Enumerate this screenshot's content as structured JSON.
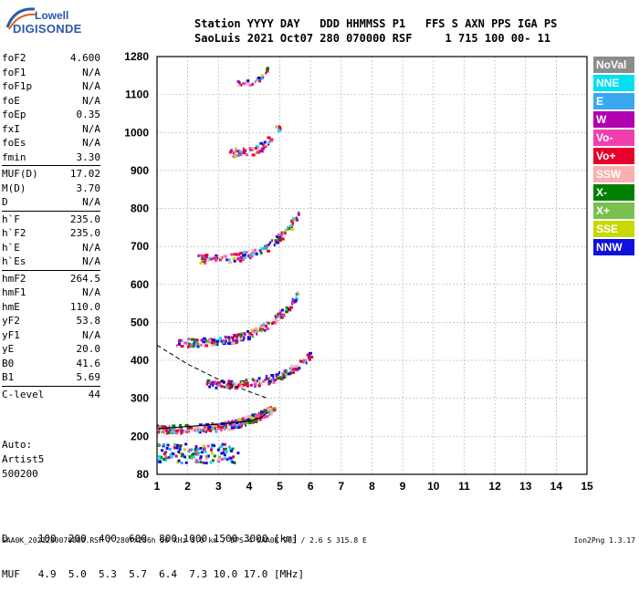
{
  "logo": {
    "line1": "Lowell",
    "line2": "DIGISONDE"
  },
  "header": {
    "line1": "Station YYYY DAY   DDD HHMMSS P1   FFS S AXN PPS IGA PS",
    "line2": "SaoLuis 2021 Oct07 280 070000 RSF     1 715 100 00- 11"
  },
  "params": [
    {
      "group": [
        {
          "k": "foF2",
          "v": "4.600"
        },
        {
          "k": "foF1",
          "v": "N/A"
        },
        {
          "k": "foF1p",
          "v": "N/A"
        },
        {
          "k": "foE",
          "v": "N/A"
        },
        {
          "k": "foEp",
          "v": "0.35"
        },
        {
          "k": "fxI",
          "v": "N/A"
        },
        {
          "k": "foEs",
          "v": "N/A"
        },
        {
          "k": "fmin",
          "v": "3.30"
        }
      ]
    },
    {
      "group": [
        {
          "k": "MUF(D)",
          "v": "17.02"
        },
        {
          "k": "M(D)",
          "v": "3.70"
        },
        {
          "k": "D",
          "v": "N/A"
        }
      ]
    },
    {
      "group": [
        {
          "k": "h`F",
          "v": "235.0"
        },
        {
          "k": "h`F2",
          "v": "235.0"
        },
        {
          "k": "h`E",
          "v": "N/A"
        },
        {
          "k": "h`Es",
          "v": "N/A"
        }
      ]
    },
    {
      "group": [
        {
          "k": "hmF2",
          "v": "264.5"
        },
        {
          "k": "hmF1",
          "v": "N/A"
        },
        {
          "k": "hmE",
          "v": "110.0"
        },
        {
          "k": "yF2",
          "v": "53.8"
        },
        {
          "k": "yF1",
          "v": "N/A"
        },
        {
          "k": "yE",
          "v": "20.0"
        },
        {
          "k": "B0",
          "v": "41.6"
        },
        {
          "k": "B1",
          "v": "5.69"
        }
      ]
    },
    {
      "group": [
        {
          "k": "C-level",
          "v": "44"
        }
      ]
    }
  ],
  "auto": {
    "line1": "Auto:",
    "line2": "Artist5",
    "line3": "500200"
  },
  "muf_table": {
    "d_row": "D     100  200  400  600  800 1000 1500 3000 [km]",
    "muf_row": "MUF   4.9  5.0  5.3  5.7  6.4  7.3 10.0 17.0 [MHz]"
  },
  "footer": {
    "left": "SAA0K_2021280070000.RSF / 280fx256h 50 kHz 5.0 km / DPS-4 SAA0K 903 / 2.6 S 315.8 E",
    "right": "Ion2Png 1.3.17"
  },
  "legend": [
    {
      "label": "NoVal",
      "color": "#8c8c8c"
    },
    {
      "label": "NNE",
      "color": "#00e0f0"
    },
    {
      "label": "E",
      "color": "#3aa8f0"
    },
    {
      "label": "W",
      "color": "#b000b0"
    },
    {
      "label": "Vo-",
      "color": "#f040b0"
    },
    {
      "label": "Vo+",
      "color": "#e8002a"
    },
    {
      "label": "SSW",
      "color": "#f8b0b0"
    },
    {
      "label": "X-",
      "color": "#008000"
    },
    {
      "label": "X+",
      "color": "#78c050"
    },
    {
      "label": "SSE",
      "color": "#c8d800"
    },
    {
      "label": "NNW",
      "color": "#1010e0"
    }
  ],
  "chart_data": {
    "type": "scatter",
    "x_ticks": [
      "1",
      "2",
      "3",
      "4",
      "5",
      "6",
      "7",
      "8",
      "9",
      "10",
      "11",
      "12",
      "13",
      "14",
      "15"
    ],
    "y_ticks": [
      "80",
      "200",
      "300",
      "400",
      "500",
      "600",
      "700",
      "800",
      "900",
      "1000",
      "1100",
      "1280"
    ],
    "y_tick_values": [
      80,
      200,
      300,
      400,
      500,
      600,
      700,
      800,
      900,
      1000,
      1100,
      1280
    ],
    "xlim": [
      1,
      15
    ],
    "ylim": [
      80,
      1280
    ],
    "grid": true,
    "legend_position": "right",
    "traces": [
      {
        "f_start": 1.0,
        "f_end": 4.8,
        "h_base": 222,
        "h_top": 280,
        "density": 240
      },
      {
        "f_start": 2.6,
        "f_end": 6.0,
        "h_base": 340,
        "h_top": 420,
        "density": 140
      },
      {
        "f_start": 1.6,
        "f_end": 5.6,
        "h_base": 450,
        "h_top": 580,
        "density": 170
      },
      {
        "f_start": 2.3,
        "f_end": 5.6,
        "h_base": 670,
        "h_top": 790,
        "density": 120
      },
      {
        "f_start": 3.3,
        "f_end": 5.0,
        "h_base": 950,
        "h_top": 1030,
        "density": 50
      },
      {
        "f_start": 3.6,
        "f_end": 4.6,
        "h_base": 1160,
        "h_top": 1230,
        "density": 25
      }
    ],
    "low_blob": {
      "f_start": 1.0,
      "f_end": 3.6,
      "h_min": 120,
      "h_max": 180
    },
    "profile_curve": [
      [
        1.0,
        220
      ],
      [
        2.0,
        226
      ],
      [
        3.0,
        232
      ],
      [
        4.0,
        240
      ],
      [
        4.4,
        250
      ],
      [
        4.6,
        264
      ]
    ],
    "dashed_curve": [
      [
        1.0,
        440
      ],
      [
        2.0,
        390
      ],
      [
        3.0,
        350
      ],
      [
        4.0,
        318
      ],
      [
        4.6,
        300
      ]
    ]
  }
}
